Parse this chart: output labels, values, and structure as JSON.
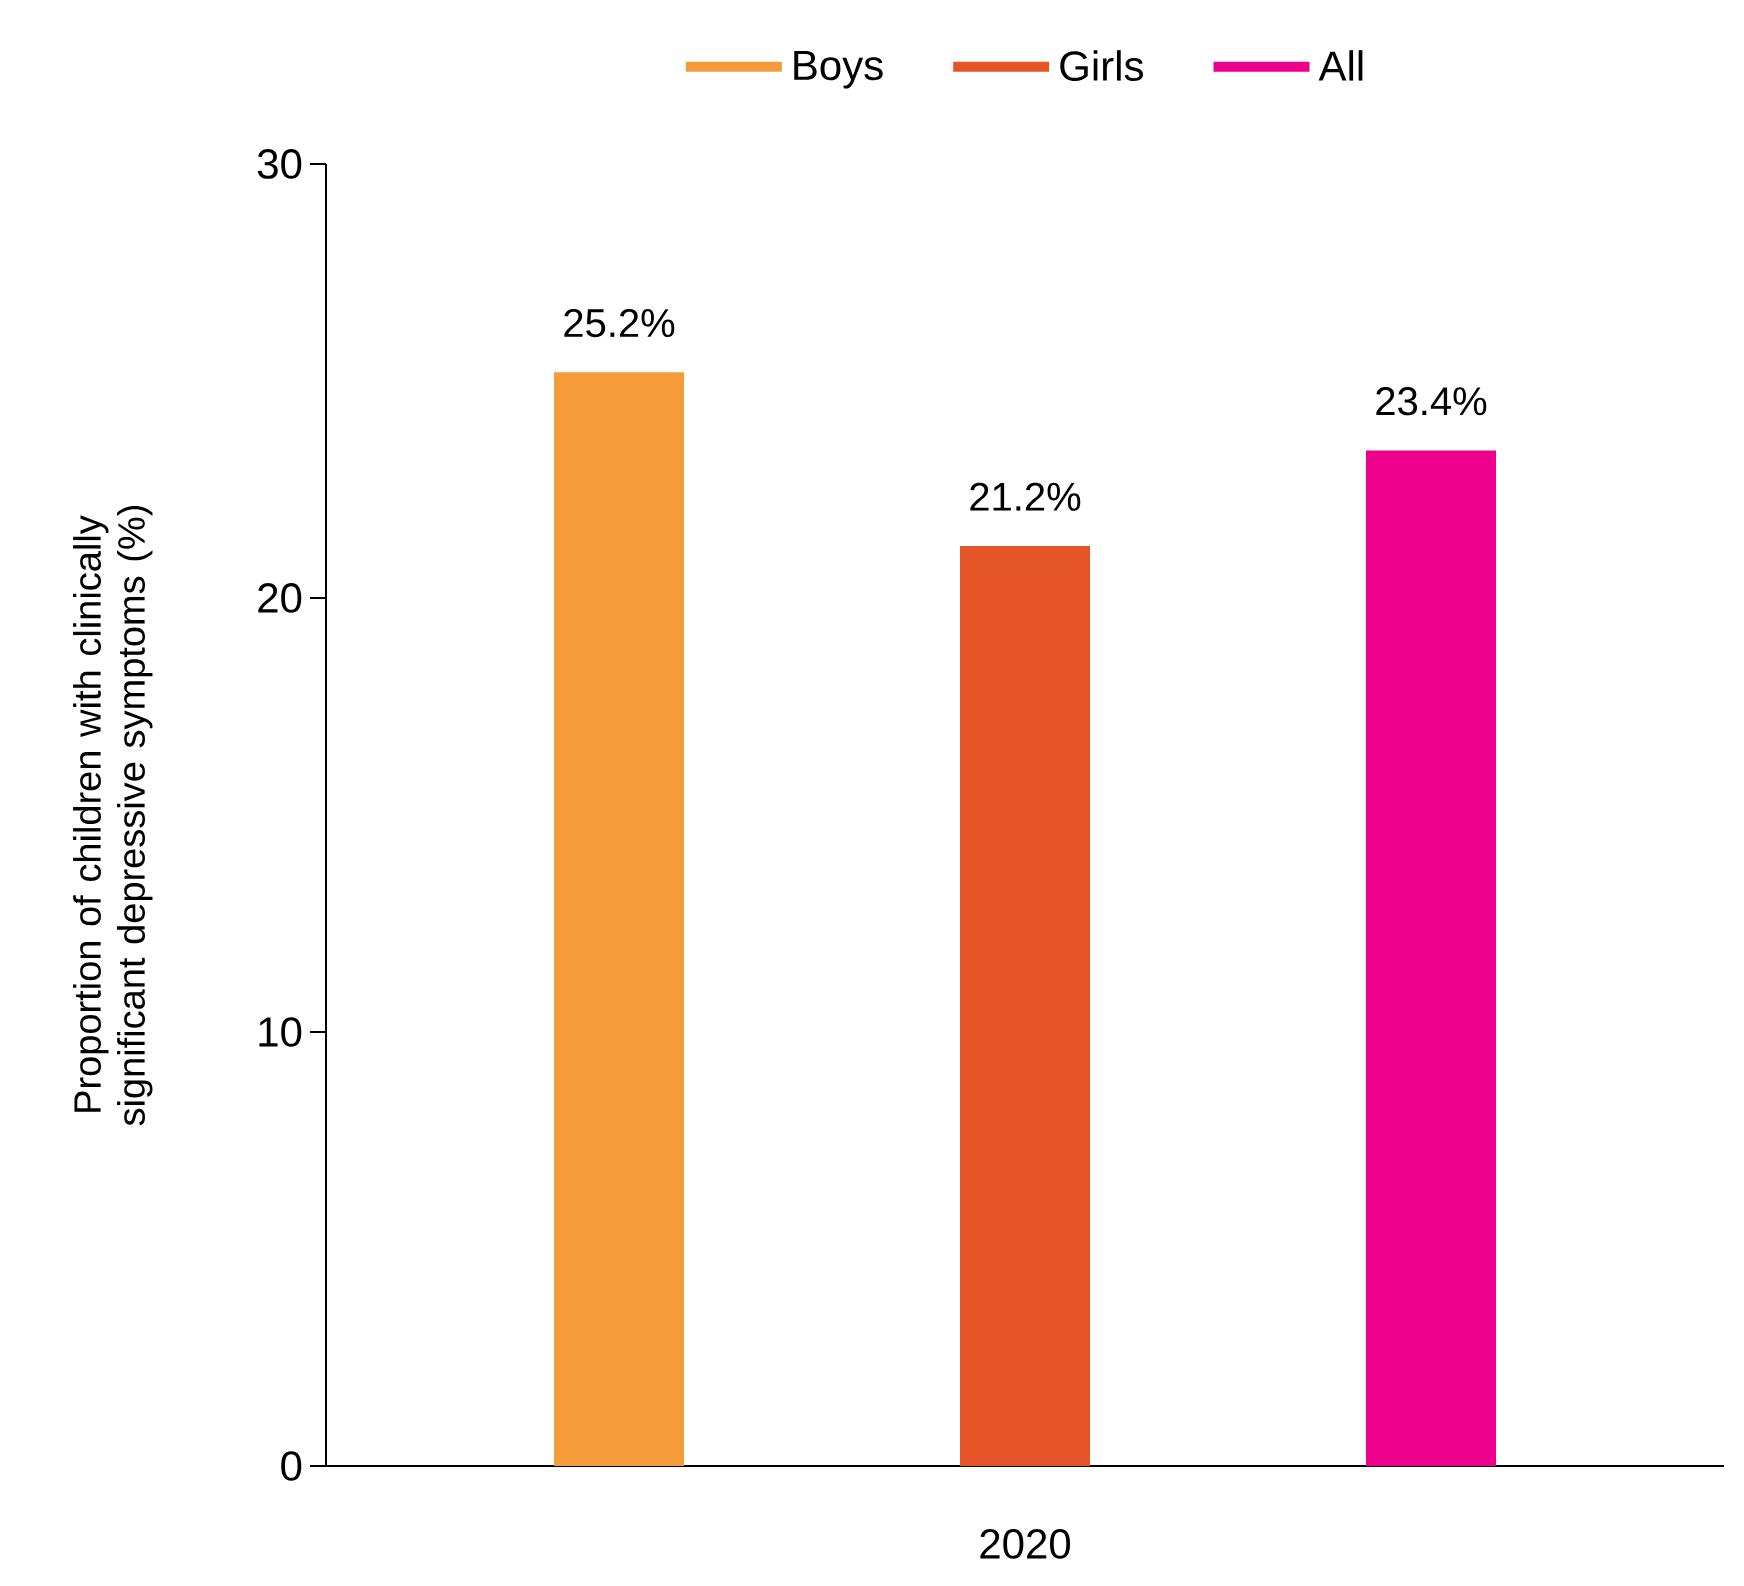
{
  "chart_data": {
    "type": "bar",
    "ylabel": "Proportion of children with clinically significant depressive symptoms (%)",
    "categories": [
      "2020"
    ],
    "series": [
      {
        "name": "Boys",
        "color": "#f59b3a",
        "values": [
          25.2
        ],
        "value_labels": [
          "25.2%"
        ]
      },
      {
        "name": "Girls",
        "color": "#e55527",
        "values": [
          21.2
        ],
        "value_labels": [
          "21.2%"
        ]
      },
      {
        "name": "All",
        "color": "#ec008c",
        "values": [
          23.4
        ],
        "value_labels": [
          "23.4%"
        ]
      }
    ],
    "ylim": [
      0,
      30
    ],
    "yticks": [
      0,
      10,
      20,
      30
    ],
    "grid": false,
    "legend": "top"
  }
}
